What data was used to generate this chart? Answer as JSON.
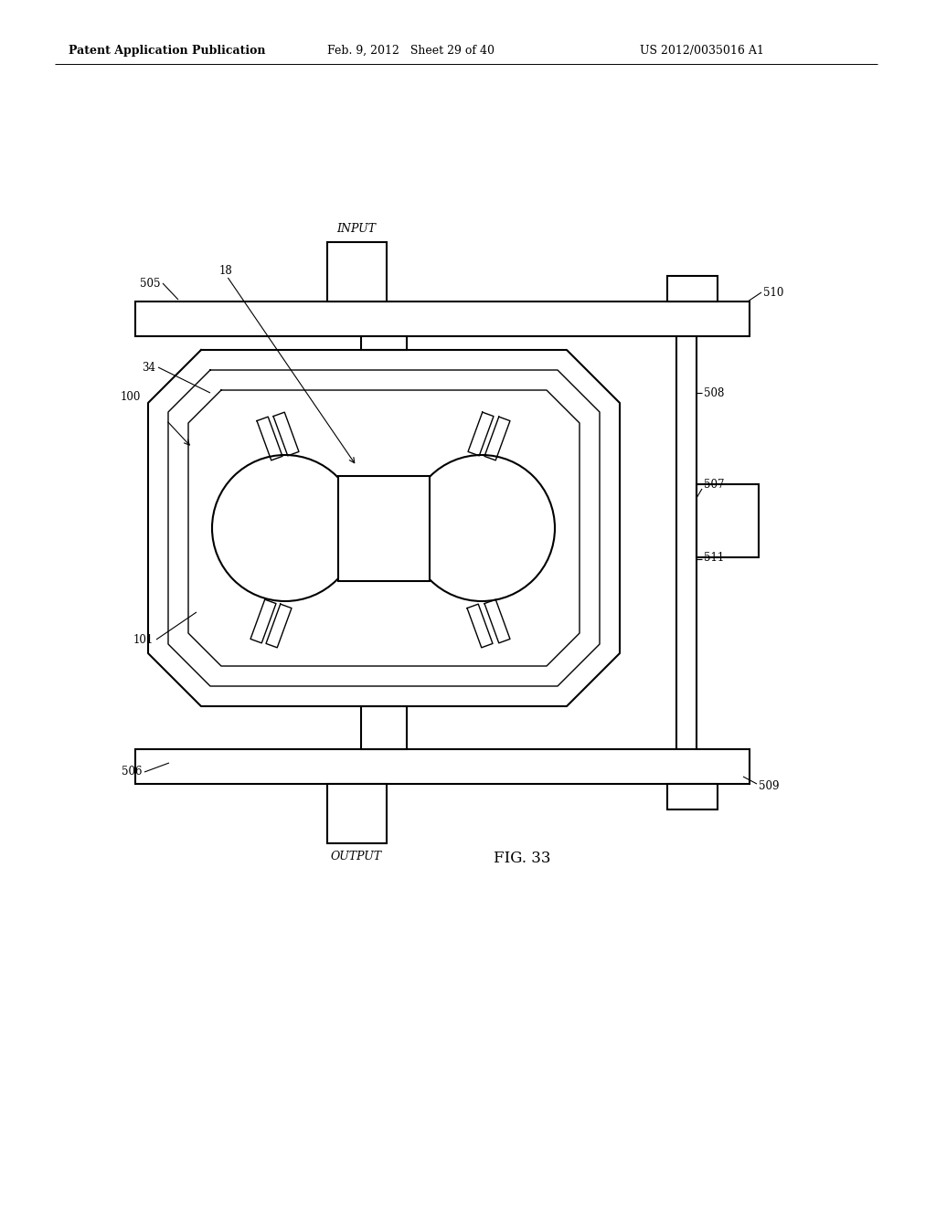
{
  "title_left": "Patent Application Publication",
  "title_mid": "Feb. 9, 2012   Sheet 29 of 40",
  "title_right": "US 2012/0035016 A1",
  "fig_label": "FIG. 33",
  "input_label": "INPUT",
  "output_label": "OUTPUT",
  "bg_color": "#ffffff",
  "line_color": "#000000"
}
